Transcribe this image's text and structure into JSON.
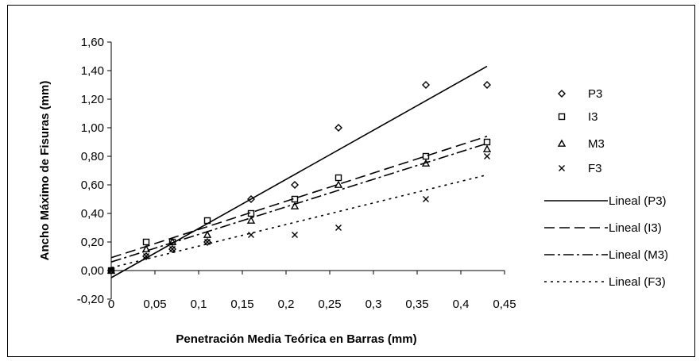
{
  "chart_data": {
    "type": "scatter",
    "title": "",
    "xlabel": "Penetración Media Teórica en Barras (mm)",
    "ylabel": "Ancho Máximo de Fisuras (mm)",
    "xlim": [
      0,
      0.45
    ],
    "ylim": [
      -0.2,
      1.6
    ],
    "x_ticks": [
      "0",
      "0,05",
      "0,1",
      "0,15",
      "0,2",
      "0,25",
      "0,3",
      "0,35",
      "0,4",
      "0,45"
    ],
    "y_ticks": [
      "-0,20",
      "0,00",
      "0,20",
      "0,40",
      "0,60",
      "0,80",
      "1,00",
      "1,20",
      "1,40",
      "1,60"
    ],
    "grid": false,
    "legend_position": "right",
    "series": [
      {
        "name": "P3",
        "marker": "diamond",
        "x": [
          0,
          0.04,
          0.07,
          0.11,
          0.16,
          0.21,
          0.26,
          0.36,
          0.43
        ],
        "y": [
          0.0,
          0.1,
          0.15,
          0.2,
          0.5,
          0.6,
          1.0,
          1.3,
          1.3
        ]
      },
      {
        "name": "I3",
        "marker": "square",
        "x": [
          0,
          0.04,
          0.07,
          0.11,
          0.16,
          0.21,
          0.26,
          0.36,
          0.43
        ],
        "y": [
          0.0,
          0.2,
          0.2,
          0.35,
          0.4,
          0.5,
          0.65,
          0.8,
          0.9
        ]
      },
      {
        "name": "M3",
        "marker": "triangle",
        "x": [
          0,
          0.04,
          0.07,
          0.11,
          0.16,
          0.21,
          0.26,
          0.36,
          0.43
        ],
        "y": [
          0.0,
          0.15,
          0.2,
          0.25,
          0.35,
          0.45,
          0.6,
          0.75,
          0.85
        ]
      },
      {
        "name": "F3",
        "marker": "x",
        "x": [
          0,
          0.04,
          0.07,
          0.11,
          0.16,
          0.21,
          0.26,
          0.36,
          0.43
        ],
        "y": [
          0.0,
          0.1,
          0.15,
          0.2,
          0.25,
          0.25,
          0.3,
          0.5,
          0.8
        ]
      }
    ],
    "trendlines": [
      {
        "name": "Lineal (P3)",
        "style": "solid",
        "x": [
          0,
          0.43
        ],
        "y": [
          -0.05,
          1.43
        ]
      },
      {
        "name": "Lineal (I3)",
        "style": "dash",
        "x": [
          0,
          0.43
        ],
        "y": [
          0.09,
          0.94
        ]
      },
      {
        "name": "Lineal (M3)",
        "style": "dashdot",
        "x": [
          0,
          0.43
        ],
        "y": [
          0.06,
          0.89
        ]
      },
      {
        "name": "Lineal (F3)",
        "style": "dot",
        "x": [
          0,
          0.43
        ],
        "y": [
          0.02,
          0.67
        ]
      }
    ]
  }
}
